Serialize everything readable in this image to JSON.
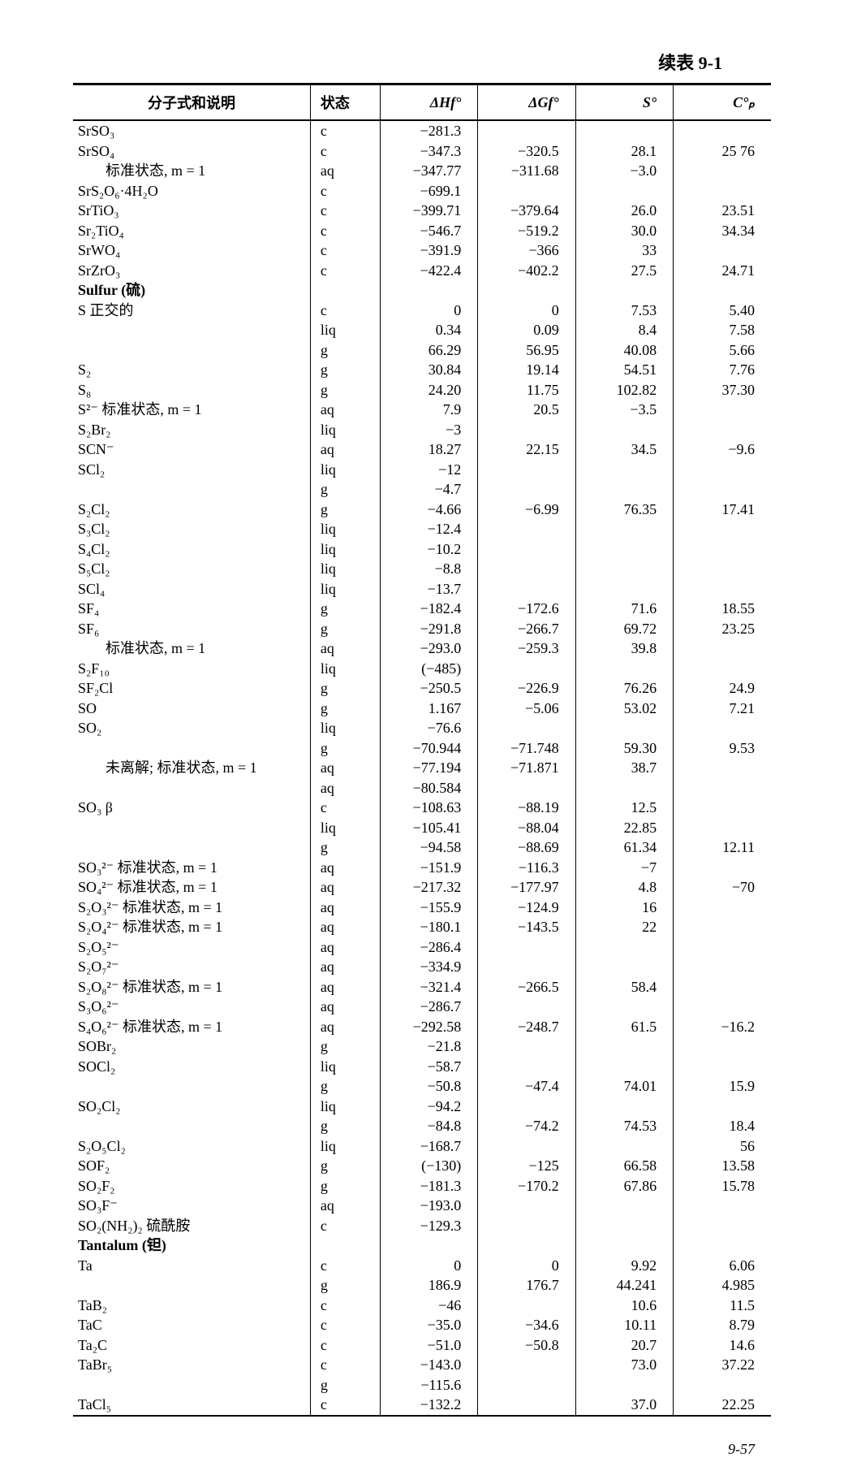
{
  "caption": "续表 9-1",
  "footer": "9-57",
  "headers": [
    "分子式和说明",
    "状态",
    "ΔHf°",
    "ΔGf°",
    "S°",
    "C°ₚ"
  ],
  "rows": [
    {
      "f": "SrSO₃",
      "s": "c",
      "h": "−281.3",
      "g": "",
      "e": "",
      "c": ""
    },
    {
      "f": "SrSO₄",
      "s": "c",
      "h": "−347.3",
      "g": "−320.5",
      "e": "28.1",
      "c": "25 76"
    },
    {
      "f": "标准状态, m = 1",
      "indent": true,
      "s": "aq",
      "h": "−347.77",
      "g": "−311.68",
      "e": "−3.0",
      "c": ""
    },
    {
      "f": "SrS₂O₆·4H₂O",
      "s": "c",
      "h": "−699.1",
      "g": "",
      "e": "",
      "c": ""
    },
    {
      "f": "SrTiO₃",
      "s": "c",
      "h": "−399.71",
      "g": "−379.64",
      "e": "26.0",
      "c": "23.51"
    },
    {
      "f": "Sr₂TiO₄",
      "s": "c",
      "h": "−546.7",
      "g": "−519.2",
      "e": "30.0",
      "c": "34.34"
    },
    {
      "f": "SrWO₄",
      "s": "c",
      "h": "−391.9",
      "g": "−366",
      "e": "33",
      "c": ""
    },
    {
      "f": "SrZrO₃",
      "s": "c",
      "h": "−422.4",
      "g": "−402.2",
      "e": "27.5",
      "c": "24.71"
    },
    {
      "f": "Sulfur (硫)",
      "bold": true,
      "s": "",
      "h": "",
      "g": "",
      "e": "",
      "c": ""
    },
    {
      "f": "S  正交的",
      "indent": false,
      "s": "c",
      "h": "0",
      "g": "0",
      "e": "7.53",
      "c": "5.40"
    },
    {
      "f": "",
      "s": "liq",
      "h": "0.34",
      "g": "0.09",
      "e": "8.4",
      "c": "7.58"
    },
    {
      "f": "",
      "s": "g",
      "h": "66.29",
      "g": "56.95",
      "e": "40.08",
      "c": "5.66"
    },
    {
      "f": "S₂",
      "s": "g",
      "h": "30.84",
      "g": "19.14",
      "e": "54.51",
      "c": "7.76"
    },
    {
      "f": "S₈",
      "s": "g",
      "h": "24.20",
      "g": "11.75",
      "e": "102.82",
      "c": "37.30"
    },
    {
      "f": "S²⁻  标准状态, m = 1",
      "s": "aq",
      "h": "7.9",
      "g": "20.5",
      "e": "−3.5",
      "c": ""
    },
    {
      "f": "S₂Br₂",
      "s": "liq",
      "h": "−3",
      "g": "",
      "e": "",
      "c": ""
    },
    {
      "f": "SCN⁻",
      "s": "aq",
      "h": "18.27",
      "g": "22.15",
      "e": "34.5",
      "c": "−9.6"
    },
    {
      "f": "SCl₂",
      "s": "liq",
      "h": "−12",
      "g": "",
      "e": "",
      "c": ""
    },
    {
      "f": "",
      "s": "g",
      "h": "−4.7",
      "g": "",
      "e": "",
      "c": ""
    },
    {
      "f": "S₂Cl₂",
      "s": "g",
      "h": "−4.66",
      "g": "−6.99",
      "e": "76.35",
      "c": "17.41"
    },
    {
      "f": "S₃Cl₂",
      "s": "liq",
      "h": "−12.4",
      "g": "",
      "e": "",
      "c": ""
    },
    {
      "f": "S₄Cl₂",
      "s": "liq",
      "h": "−10.2",
      "g": "",
      "e": "",
      "c": ""
    },
    {
      "f": "S₅Cl₂",
      "s": "liq",
      "h": "−8.8",
      "g": "",
      "e": "",
      "c": ""
    },
    {
      "f": "SCl₄",
      "s": "liq",
      "h": "−13.7",
      "g": "",
      "e": "",
      "c": ""
    },
    {
      "f": "SF₄",
      "s": "g",
      "h": "−182.4",
      "g": "−172.6",
      "e": "71.6",
      "c": "18.55"
    },
    {
      "f": "SF₆",
      "s": "g",
      "h": "−291.8",
      "g": "−266.7",
      "e": "69.72",
      "c": "23.25"
    },
    {
      "f": "标准状态, m = 1",
      "indent": true,
      "s": "aq",
      "h": "−293.0",
      "g": "−259.3",
      "e": "39.8",
      "c": ""
    },
    {
      "f": "S₂F₁₀",
      "s": "liq",
      "h": "(−485)",
      "g": "",
      "e": "",
      "c": ""
    },
    {
      "f": "SF₂Cl",
      "s": "g",
      "h": "−250.5",
      "g": "−226.9",
      "e": "76.26",
      "c": "24.9"
    },
    {
      "f": "SO",
      "s": "g",
      "h": "1.167",
      "g": "−5.06",
      "e": "53.02",
      "c": "7.21"
    },
    {
      "f": "SO₂",
      "s": "liq",
      "h": "−76.6",
      "g": "",
      "e": "",
      "c": ""
    },
    {
      "f": "",
      "s": "g",
      "h": "−70.944",
      "g": "−71.748",
      "e": "59.30",
      "c": "9.53"
    },
    {
      "f": "未离解; 标准状态, m = 1",
      "indent": true,
      "s": "aq",
      "h": "−77.194",
      "g": "−71.871",
      "e": "38.7",
      "c": ""
    },
    {
      "f": "",
      "s": "aq",
      "h": "−80.584",
      "g": "",
      "e": "",
      "c": ""
    },
    {
      "f": "SO₃  β",
      "s": "c",
      "h": "−108.63",
      "g": "−88.19",
      "e": "12.5",
      "c": ""
    },
    {
      "f": "",
      "s": "liq",
      "h": "−105.41",
      "g": "−88.04",
      "e": "22.85",
      "c": ""
    },
    {
      "f": "",
      "s": "g",
      "h": "−94.58",
      "g": "−88.69",
      "e": "61.34",
      "c": "12.11"
    },
    {
      "f": "SO₃²⁻ 标准状态, m = 1",
      "s": "aq",
      "h": "−151.9",
      "g": "−116.3",
      "e": "−7",
      "c": ""
    },
    {
      "f": "SO₄²⁻ 标准状态, m = 1",
      "s": "aq",
      "h": "−217.32",
      "g": "−177.97",
      "e": "4.8",
      "c": "−70"
    },
    {
      "f": "S₂O₃²⁻ 标准状态, m = 1",
      "s": "aq",
      "h": "−155.9",
      "g": "−124.9",
      "e": "16",
      "c": ""
    },
    {
      "f": "S₂O₄²⁻ 标准状态, m = 1",
      "s": "aq",
      "h": "−180.1",
      "g": "−143.5",
      "e": "22",
      "c": ""
    },
    {
      "f": "S₂O₅²⁻",
      "s": "aq",
      "h": "−286.4",
      "g": "",
      "e": "",
      "c": ""
    },
    {
      "f": "S₂O₇²⁻",
      "s": "aq",
      "h": "−334.9",
      "g": "",
      "e": "",
      "c": ""
    },
    {
      "f": "S₂O₈²⁻ 标准状态, m = 1",
      "s": "aq",
      "h": "−321.4",
      "g": "−266.5",
      "e": "58.4",
      "c": ""
    },
    {
      "f": "S₃O₆²⁻",
      "s": "aq",
      "h": "−286.7",
      "g": "",
      "e": "",
      "c": ""
    },
    {
      "f": "S₄O₆²⁻ 标准状态, m = 1",
      "s": "aq",
      "h": "−292.58",
      "g": "−248.7",
      "e": "61.5",
      "c": "−16.2"
    },
    {
      "f": "SOBr₂",
      "s": "g",
      "h": "−21.8",
      "g": "",
      "e": "",
      "c": ""
    },
    {
      "f": "SOCl₂",
      "s": "liq",
      "h": "−58.7",
      "g": "",
      "e": "",
      "c": ""
    },
    {
      "f": "",
      "s": "g",
      "h": "−50.8",
      "g": "−47.4",
      "e": "74.01",
      "c": "15.9"
    },
    {
      "f": "SO₂Cl₂",
      "s": "liq",
      "h": "−94.2",
      "g": "",
      "e": "",
      "c": ""
    },
    {
      "f": "",
      "s": "g",
      "h": "−84.8",
      "g": "−74.2",
      "e": "74.53",
      "c": "18.4"
    },
    {
      "f": "S₂O₅Cl₂",
      "s": "liq",
      "h": "−168.7",
      "g": "",
      "e": "",
      "c": "56"
    },
    {
      "f": "SOF₂",
      "s": "g",
      "h": "(−130)",
      "g": "−125",
      "e": "66.58",
      "c": "13.58"
    },
    {
      "f": "SO₂F₂",
      "s": "g",
      "h": "−181.3",
      "g": "−170.2",
      "e": "67.86",
      "c": "15.78"
    },
    {
      "f": "SO₃F⁻",
      "s": "aq",
      "h": "−193.0",
      "g": "",
      "e": "",
      "c": ""
    },
    {
      "f": "SO₂(NH₂)₂  硫酰胺",
      "s": "c",
      "h": "−129.3",
      "g": "",
      "e": "",
      "c": ""
    },
    {
      "f": "Tantalum (钽)",
      "bold": true,
      "s": "",
      "h": "",
      "g": "",
      "e": "",
      "c": ""
    },
    {
      "f": "Ta",
      "s": "c",
      "h": "0",
      "g": "0",
      "e": "9.92",
      "c": "6.06"
    },
    {
      "f": "",
      "s": "g",
      "h": "186.9",
      "g": "176.7",
      "e": "44.241",
      "c": "4.985"
    },
    {
      "f": "TaB₂",
      "s": "c",
      "h": "−46",
      "g": "",
      "e": "10.6",
      "c": "11.5"
    },
    {
      "f": "TaC",
      "s": "c",
      "h": "−35.0",
      "g": "−34.6",
      "e": "10.11",
      "c": "8.79"
    },
    {
      "f": "Ta₂C",
      "s": "c",
      "h": "−51.0",
      "g": "−50.8",
      "e": "20.7",
      "c": "14.6"
    },
    {
      "f": "TaBr₅",
      "s": "c",
      "h": "−143.0",
      "g": "",
      "e": "73.0",
      "c": "37.22"
    },
    {
      "f": "",
      "s": "g",
      "h": "−115.6",
      "g": "",
      "e": "",
      "c": ""
    },
    {
      "f": "TaCl₅",
      "s": "c",
      "h": "−132.2",
      "g": "",
      "e": "37.0",
      "c": "22.25"
    }
  ]
}
